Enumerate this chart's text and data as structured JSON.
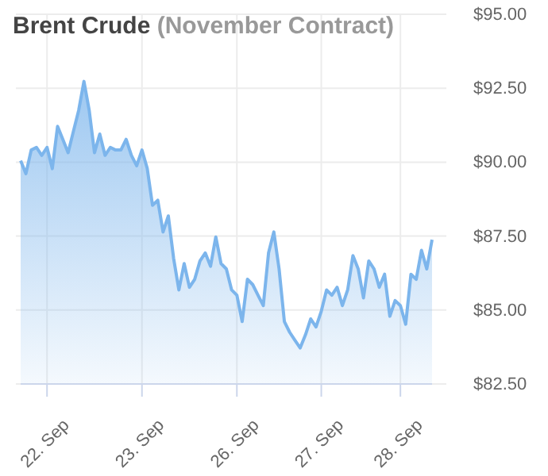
{
  "chart_data": {
    "type": "area",
    "title": "Brent Crude",
    "subtitle": "(November Contract)",
    "categories": [
      null,
      null,
      null,
      null,
      null,
      "22. Sep",
      null,
      null,
      null,
      null,
      null,
      null,
      null,
      null,
      null,
      null,
      null,
      null,
      null,
      null,
      null,
      null,
      null,
      "23. Sep",
      null,
      null,
      null,
      null,
      null,
      null,
      null,
      null,
      null,
      null,
      null,
      null,
      null,
      null,
      null,
      null,
      null,
      "26. Sep",
      null,
      null,
      null,
      null,
      null,
      null,
      null,
      null,
      null,
      null,
      null,
      null,
      null,
      null,
      null,
      "27. Sep",
      null,
      null,
      null,
      null,
      null,
      null,
      null,
      null,
      null,
      null,
      null,
      null,
      null,
      null,
      "28. Sep",
      null,
      null,
      null,
      null,
      null,
      null
    ],
    "series": [
      {
        "color": "#7cb5ec",
        "values": [
          90.05,
          89.61,
          90.41,
          90.5,
          90.23,
          90.5,
          89.78,
          91.21,
          90.77,
          90.32,
          91.04,
          91.75,
          92.73,
          91.75,
          90.32,
          90.95,
          90.23,
          90.5,
          90.41,
          90.41,
          90.77,
          90.23,
          89.88,
          90.41,
          89.79,
          88.54,
          88.71,
          87.64,
          88.18,
          86.75,
          85.68,
          86.57,
          85.77,
          86.04,
          86.66,
          86.93,
          86.48,
          87.47,
          86.57,
          86.39,
          85.68,
          85.5,
          84.61,
          86.04,
          85.86,
          85.5,
          85.15,
          86.93,
          87.64,
          86.39,
          84.61,
          84.25,
          83.98,
          83.72,
          84.16,
          84.7,
          84.43,
          84.96,
          85.68,
          85.5,
          85.77,
          85.15,
          85.68,
          86.84,
          86.39,
          85.41,
          86.66,
          86.39,
          85.77,
          86.21,
          84.79,
          85.32,
          85.15,
          84.52,
          86.21,
          86.04,
          87.02,
          86.39,
          87.38
        ]
      }
    ],
    "ylim": [
      82.5,
      95
    ],
    "yticks": [
      {
        "value": 82.5,
        "label": "$82.50"
      },
      {
        "value": 85,
        "label": "$85.00"
      },
      {
        "value": 87.5,
        "label": "$87.50"
      },
      {
        "value": 90,
        "label": "$90.00"
      },
      {
        "value": 92.5,
        "label": "$92.50"
      },
      {
        "value": 95,
        "label": "$95.00"
      }
    ],
    "grid": true
  }
}
